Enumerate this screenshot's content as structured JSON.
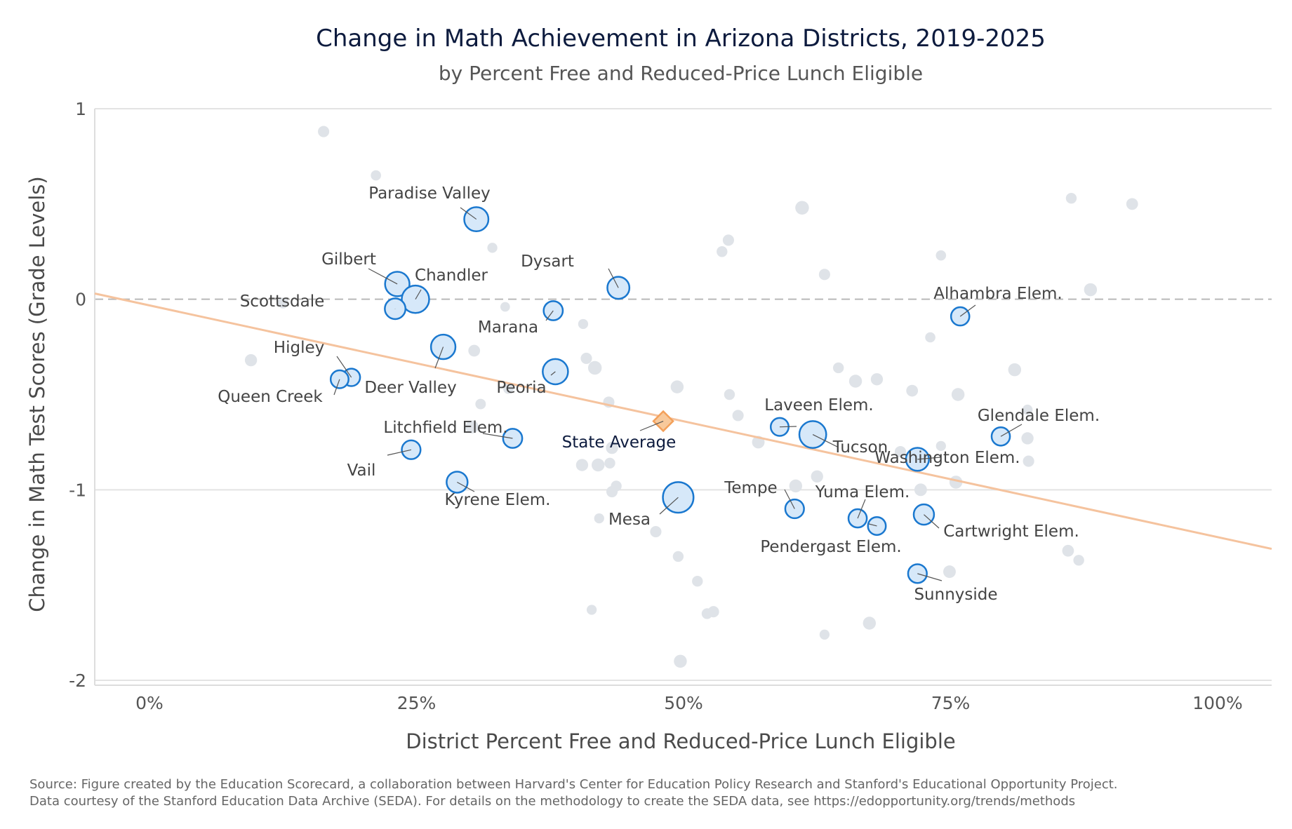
{
  "chart_data": {
    "type": "scatter",
    "title": "Change in Math Achievement in Arizona Districts, 2019-2025",
    "subtitle": "by Percent Free and Reduced-Price Lunch Eligible",
    "xlabel": "District Percent Free and Reduced-Price Lunch Eligible",
    "ylabel": "Change in Math Test Scores (Grade Levels)",
    "xlim": [
      -0.05,
      1.05
    ],
    "ylim": [
      -2.03,
      1.0
    ],
    "xticks": [
      0,
      0.25,
      0.5,
      0.75,
      1.0
    ],
    "xtick_labels": [
      "0%",
      "25%",
      "50%",
      "75%",
      "100%"
    ],
    "yticks": [
      1,
      0,
      -1,
      -2
    ],
    "ytick_labels": [
      "1",
      "0",
      "-1",
      "-2"
    ],
    "grid": "horizontal",
    "reference_line_y": 0,
    "trend_line": {
      "x": [
        -0.05,
        1.05
      ],
      "y": [
        0.03,
        -1.31
      ]
    },
    "highlight_color": "#1a78cf",
    "highlight_fill": "#d6e8f9",
    "background_color": "#dfe3e8",
    "trend_color": "#f5c39e",
    "state_average_color": "#f3a05a",
    "labeled_districts": [
      {
        "name": "Paradise Valley",
        "x": 0.306,
        "y": 0.42,
        "size": 32000
      },
      {
        "name": "Gilbert",
        "x": 0.232,
        "y": 0.08,
        "size": 33000
      },
      {
        "name": "Chandler",
        "x": 0.249,
        "y": 0.0,
        "size": 44000
      },
      {
        "name": "Scottsdale",
        "x": 0.23,
        "y": -0.05,
        "size": 21000
      },
      {
        "name": "Dysart",
        "x": 0.439,
        "y": 0.06,
        "size": 25000
      },
      {
        "name": "Marana",
        "x": 0.378,
        "y": -0.06,
        "size": 17000
      },
      {
        "name": "Higley",
        "x": 0.189,
        "y": -0.41,
        "size": 13000
      },
      {
        "name": "Queen Creek",
        "x": 0.178,
        "y": -0.42,
        "size": 14000
      },
      {
        "name": "Deer Valley",
        "x": 0.275,
        "y": -0.25,
        "size": 33000
      },
      {
        "name": "Peoria",
        "x": 0.38,
        "y": -0.38,
        "size": 36000
      },
      {
        "name": "Litchfield Elem.",
        "x": 0.34,
        "y": -0.73,
        "size": 17000
      },
      {
        "name": "Vail",
        "x": 0.245,
        "y": -0.79,
        "size": 16000
      },
      {
        "name": "Kyrene Elem.",
        "x": 0.288,
        "y": -0.96,
        "size": 22000
      },
      {
        "name": "Mesa",
        "x": 0.495,
        "y": -1.04,
        "size": 58000
      },
      {
        "name": "Laveen Elem.",
        "x": 0.59,
        "y": -0.67,
        "size": 14000
      },
      {
        "name": "Tucson",
        "x": 0.621,
        "y": -0.71,
        "size": 42000
      },
      {
        "name": "Tempe",
        "x": 0.604,
        "y": -1.1,
        "size": 16000
      },
      {
        "name": "Yuma Elem.",
        "x": 0.663,
        "y": -1.15,
        "size": 15000
      },
      {
        "name": "Pendergast Elem.",
        "x": 0.681,
        "y": -1.19,
        "size": 14000
      },
      {
        "name": "Washington Elem.",
        "x": 0.719,
        "y": -0.84,
        "size": 28000
      },
      {
        "name": "Cartwright Elem.",
        "x": 0.725,
        "y": -1.13,
        "size": 20000
      },
      {
        "name": "Sunnyside",
        "x": 0.719,
        "y": -1.44,
        "size": 16000
      },
      {
        "name": "Alhambra Elem.",
        "x": 0.759,
        "y": -0.09,
        "size": 15000
      },
      {
        "name": "Glendale Elem.",
        "x": 0.797,
        "y": -0.72,
        "size": 15000
      }
    ],
    "state_average": {
      "name": "State Average",
      "x": 0.481,
      "y": -0.64
    },
    "other_districts": [
      {
        "x": 0.163,
        "y": 0.88,
        "size": 3000
      },
      {
        "x": 0.212,
        "y": 0.65,
        "size": 2000
      },
      {
        "x": 0.611,
        "y": 0.48,
        "size": 6000
      },
      {
        "x": 0.863,
        "y": 0.53,
        "size": 2500
      },
      {
        "x": 0.92,
        "y": 0.5,
        "size": 3500
      },
      {
        "x": 0.542,
        "y": 0.31,
        "size": 3000
      },
      {
        "x": 0.536,
        "y": 0.25,
        "size": 2500
      },
      {
        "x": 0.321,
        "y": 0.27,
        "size": 1800
      },
      {
        "x": 0.632,
        "y": 0.13,
        "size": 3000
      },
      {
        "x": 0.741,
        "y": 0.23,
        "size": 2000
      },
      {
        "x": 0.881,
        "y": 0.05,
        "size": 5000
      },
      {
        "x": 0.125,
        "y": -0.02,
        "size": 2500
      },
      {
        "x": 0.333,
        "y": -0.04,
        "size": 1500
      },
      {
        "x": 0.406,
        "y": -0.13,
        "size": 1800
      },
      {
        "x": 0.731,
        "y": -0.2,
        "size": 2000
      },
      {
        "x": 0.095,
        "y": -0.32,
        "size": 4000
      },
      {
        "x": 0.304,
        "y": -0.27,
        "size": 3500
      },
      {
        "x": 0.409,
        "y": -0.31,
        "size": 3000
      },
      {
        "x": 0.417,
        "y": -0.36,
        "size": 6000
      },
      {
        "x": 0.645,
        "y": -0.36,
        "size": 2500
      },
      {
        "x": 0.661,
        "y": -0.43,
        "size": 5000
      },
      {
        "x": 0.681,
        "y": -0.42,
        "size": 4000
      },
      {
        "x": 0.81,
        "y": -0.37,
        "size": 5000
      },
      {
        "x": 0.494,
        "y": -0.46,
        "size": 5000
      },
      {
        "x": 0.543,
        "y": -0.5,
        "size": 2500
      },
      {
        "x": 0.714,
        "y": -0.48,
        "size": 3500
      },
      {
        "x": 0.757,
        "y": -0.5,
        "size": 5000
      },
      {
        "x": 0.336,
        "y": -0.47,
        "size": 2000
      },
      {
        "x": 0.43,
        "y": -0.54,
        "size": 3000
      },
      {
        "x": 0.31,
        "y": -0.55,
        "size": 2200
      },
      {
        "x": 0.551,
        "y": -0.61,
        "size": 3000
      },
      {
        "x": 0.302,
        "y": -0.67,
        "size": 5000
      },
      {
        "x": 0.57,
        "y": -0.75,
        "size": 4500
      },
      {
        "x": 0.433,
        "y": -0.78,
        "size": 4000
      },
      {
        "x": 0.741,
        "y": -0.77,
        "size": 1800
      },
      {
        "x": 0.822,
        "y": -0.73,
        "size": 4000
      },
      {
        "x": 0.822,
        "y": -0.58,
        "size": 2000
      },
      {
        "x": 0.703,
        "y": -0.8,
        "size": 3000
      },
      {
        "x": 0.405,
        "y": -0.87,
        "size": 4000
      },
      {
        "x": 0.42,
        "y": -0.87,
        "size": 5000
      },
      {
        "x": 0.431,
        "y": -0.86,
        "size": 2500
      },
      {
        "x": 0.823,
        "y": -0.85,
        "size": 3000
      },
      {
        "x": 0.625,
        "y": -0.93,
        "size": 4000
      },
      {
        "x": 0.605,
        "y": -0.98,
        "size": 5000
      },
      {
        "x": 0.755,
        "y": -0.96,
        "size": 5000
      },
      {
        "x": 0.722,
        "y": -1.0,
        "size": 4500
      },
      {
        "x": 0.437,
        "y": -0.98,
        "size": 2500
      },
      {
        "x": 0.433,
        "y": -1.01,
        "size": 3000
      },
      {
        "x": 0.421,
        "y": -1.15,
        "size": 1800
      },
      {
        "x": 0.474,
        "y": -1.22,
        "size": 3000
      },
      {
        "x": 0.495,
        "y": -1.35,
        "size": 2500
      },
      {
        "x": 0.513,
        "y": -1.48,
        "size": 2500
      },
      {
        "x": 0.86,
        "y": -1.32,
        "size": 3500
      },
      {
        "x": 0.87,
        "y": -1.37,
        "size": 2500
      },
      {
        "x": 0.749,
        "y": -1.43,
        "size": 4500
      },
      {
        "x": 0.414,
        "y": -1.63,
        "size": 1800
      },
      {
        "x": 0.528,
        "y": -1.64,
        "size": 3000
      },
      {
        "x": 0.522,
        "y": -1.65,
        "size": 2500
      },
      {
        "x": 0.674,
        "y": -1.7,
        "size": 5000
      },
      {
        "x": 0.632,
        "y": -1.76,
        "size": 1800
      },
      {
        "x": 0.497,
        "y": -1.9,
        "size": 5000
      },
      {
        "x": 0.343,
        "y": -0.72,
        "size": 2000
      }
    ]
  },
  "source": {
    "line1": "Source: Figure created by the Education Scorecard, a collaboration between Harvard's Center for Education Policy Research and Stanford's Educational Opportunity Project.",
    "line2": "Data courtesy of the Stanford Education Data Archive (SEDA). For details on the methodology to create the SEDA data, see https://edopportunity.org/trends/methods"
  }
}
